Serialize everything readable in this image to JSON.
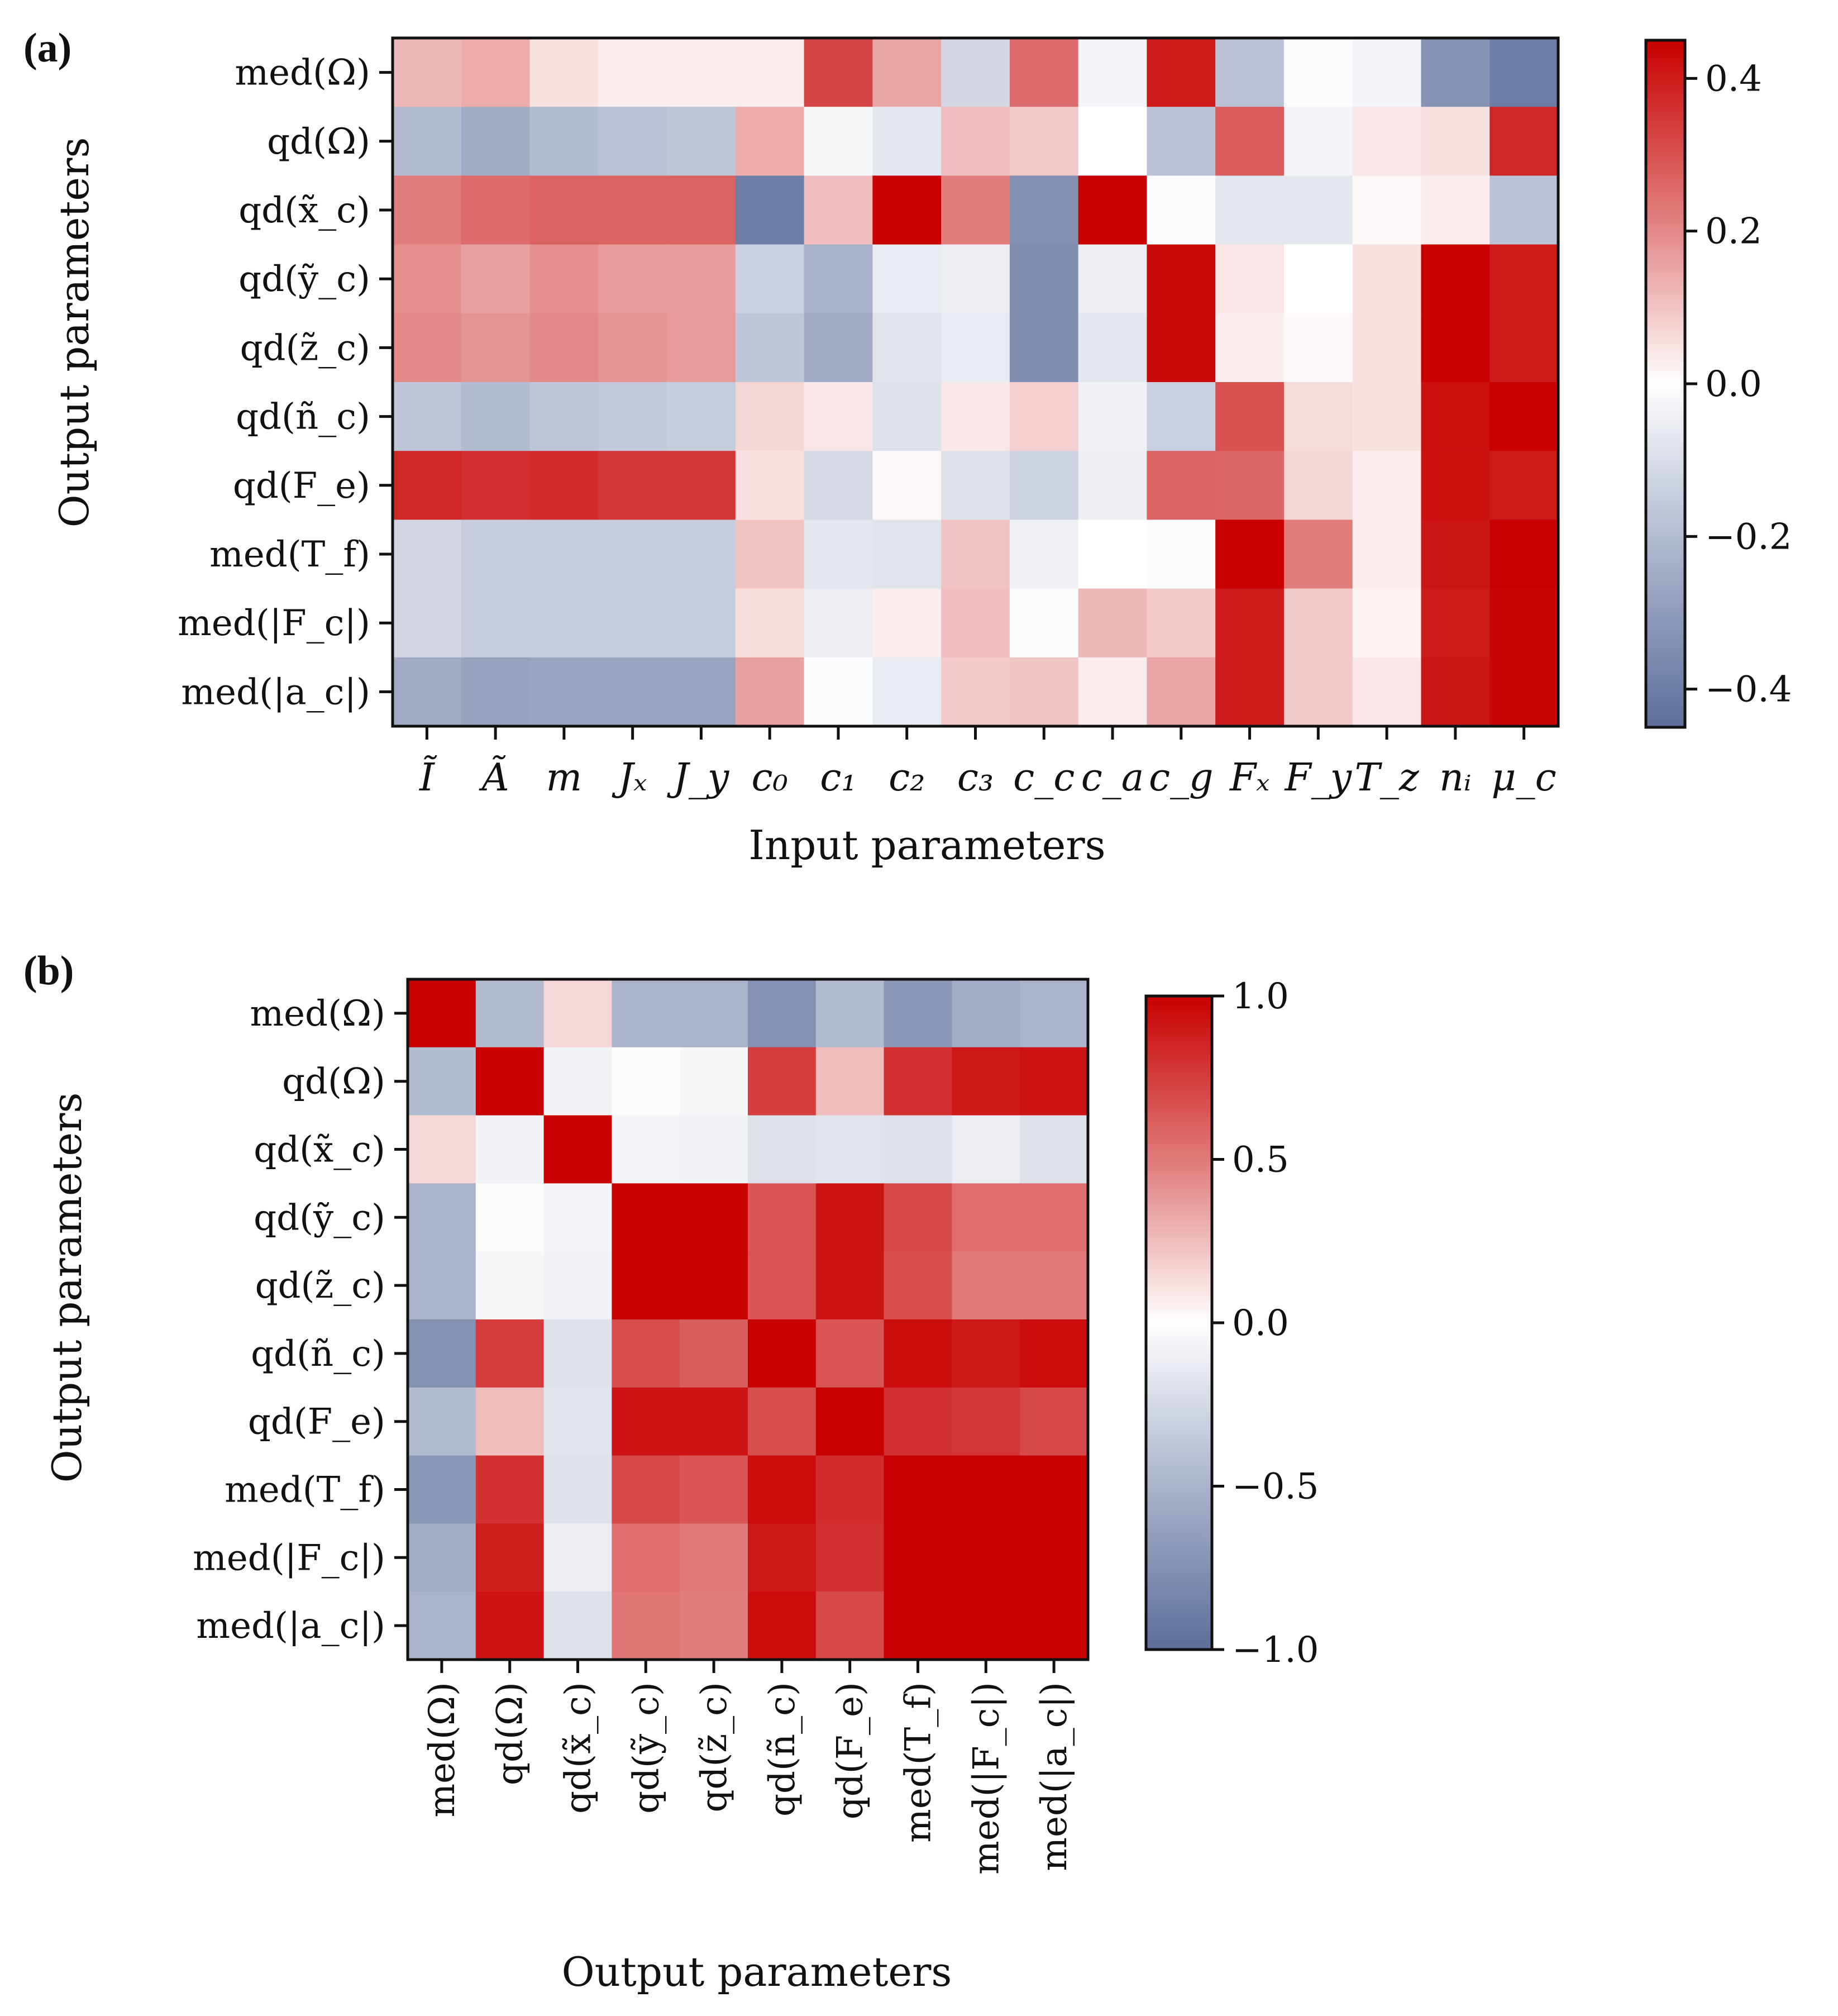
{
  "chart_data": [
    {
      "type": "heatmap",
      "panel_label": "(a)",
      "xlabel": "Input parameters",
      "ylabel": "Output parameters",
      "x_categories": [
        "Ĩ",
        "Ã",
        "m",
        "Jₓ",
        "J_y",
        "c₀",
        "c₁",
        "c₂",
        "c₃",
        "c_c",
        "c_a",
        "c_g",
        "Fₓ",
        "F_y",
        "T_z",
        "nᵢ",
        "μ_c"
      ],
      "y_categories": [
        "med(Ω)",
        "qd(Ω)",
        "qd(x̃_c)",
        "qd(ỹ_c)",
        "qd(z̃_c)",
        "qd(ñ_c)",
        "qd(F_e)",
        "med(T_f)",
        "med(|F_c|)",
        "med(|a_c|)"
      ],
      "values": [
        [
          0.12,
          0.14,
          0.05,
          0.03,
          0.03,
          0.03,
          0.32,
          0.15,
          -0.12,
          0.25,
          -0.03,
          0.4,
          -0.18,
          -0.01,
          -0.03,
          -0.33,
          -0.4
        ],
        [
          -0.2,
          -0.25,
          -0.2,
          -0.18,
          -0.17,
          0.14,
          -0.02,
          -0.07,
          0.11,
          0.09,
          0.0,
          -0.18,
          0.28,
          -0.03,
          0.04,
          0.05,
          0.38
        ],
        [
          0.22,
          0.25,
          0.27,
          0.27,
          0.27,
          -0.4,
          0.11,
          0.45,
          0.22,
          -0.34,
          0.45,
          -0.01,
          -0.07,
          -0.07,
          0.01,
          0.03,
          -0.18
        ],
        [
          0.19,
          0.16,
          0.19,
          0.17,
          0.17,
          -0.14,
          -0.23,
          -0.06,
          -0.05,
          -0.35,
          -0.05,
          0.43,
          0.04,
          0.0,
          0.05,
          0.45,
          0.4
        ],
        [
          0.2,
          0.18,
          0.2,
          0.18,
          0.17,
          -0.17,
          -0.25,
          -0.08,
          -0.06,
          -0.35,
          -0.07,
          0.43,
          0.03,
          0.01,
          0.05,
          0.45,
          0.4
        ],
        [
          -0.17,
          -0.2,
          -0.17,
          -0.16,
          -0.15,
          0.07,
          0.04,
          -0.09,
          0.04,
          0.08,
          -0.04,
          -0.14,
          0.3,
          0.06,
          0.05,
          0.42,
          0.46
        ],
        [
          0.38,
          0.36,
          0.37,
          0.35,
          0.35,
          0.05,
          -0.11,
          0.01,
          -0.09,
          -0.13,
          -0.05,
          0.27,
          0.26,
          0.07,
          0.03,
          0.42,
          0.4
        ],
        [
          -0.12,
          -0.15,
          -0.15,
          -0.15,
          -0.15,
          0.1,
          -0.07,
          -0.08,
          0.1,
          -0.04,
          0.0,
          -0.01,
          0.46,
          0.22,
          0.03,
          0.41,
          0.46
        ],
        [
          -0.12,
          -0.15,
          -0.15,
          -0.15,
          -0.15,
          0.06,
          -0.05,
          0.03,
          0.11,
          -0.01,
          0.12,
          0.09,
          0.4,
          0.09,
          0.02,
          0.4,
          0.44
        ],
        [
          -0.25,
          -0.28,
          -0.27,
          -0.27,
          -0.27,
          0.16,
          -0.01,
          -0.06,
          0.09,
          0.1,
          0.03,
          0.15,
          0.4,
          0.09,
          0.04,
          0.41,
          0.44
        ]
      ],
      "vmin": -0.45,
      "vmax": 0.45,
      "colorbar_ticks": [
        0.4,
        0.2,
        0.0,
        -0.2,
        -0.4
      ],
      "colorbar_tick_labels": [
        "0.4",
        "0.2",
        "0.0",
        "−0.2",
        "−0.4"
      ]
    },
    {
      "type": "heatmap",
      "panel_label": "(b)",
      "xlabel": "Output parameters",
      "ylabel": "Output parameters",
      "x_categories": [
        "med(Ω)",
        "qd(Ω)",
        "qd(x̃_c)",
        "qd(ỹ_c)",
        "qd(z̃_c)",
        "qd(ñ_c)",
        "qd(F_e)",
        "med(T_f)",
        "med(|F_c|)",
        "med(|a_c|)"
      ],
      "y_categories": [
        "med(Ω)",
        "qd(Ω)",
        "qd(x̃_c)",
        "qd(ỹ_c)",
        "qd(z̃_c)",
        "qd(ñ_c)",
        "qd(F_e)",
        "med(T_f)",
        "med(|F_c|)",
        "med(|a_c|)"
      ],
      "values": [
        [
          1.0,
          -0.45,
          0.15,
          -0.5,
          -0.5,
          -0.75,
          -0.45,
          -0.7,
          -0.55,
          -0.5
        ],
        [
          -0.45,
          1.0,
          -0.08,
          -0.02,
          -0.05,
          0.75,
          0.25,
          0.8,
          0.9,
          0.92
        ],
        [
          0.15,
          -0.08,
          1.0,
          -0.07,
          -0.08,
          -0.2,
          -0.18,
          -0.2,
          -0.12,
          -0.2
        ],
        [
          -0.5,
          -0.02,
          -0.07,
          1.0,
          1.0,
          0.65,
          0.92,
          0.7,
          0.55,
          0.55
        ],
        [
          -0.5,
          -0.05,
          -0.08,
          1.0,
          1.0,
          0.65,
          0.92,
          0.68,
          0.5,
          0.5
        ],
        [
          -0.75,
          0.75,
          -0.2,
          0.68,
          0.62,
          1.0,
          0.65,
          0.95,
          0.9,
          0.95
        ],
        [
          -0.45,
          0.25,
          -0.18,
          0.92,
          0.92,
          0.68,
          1.0,
          0.8,
          0.78,
          0.7
        ],
        [
          -0.7,
          0.8,
          -0.2,
          0.7,
          0.65,
          0.95,
          0.82,
          1.0,
          1.0,
          1.0
        ],
        [
          -0.55,
          0.88,
          -0.12,
          0.55,
          0.5,
          0.9,
          0.8,
          1.0,
          1.0,
          1.0
        ],
        [
          -0.5,
          0.92,
          -0.2,
          0.52,
          0.48,
          0.95,
          0.7,
          1.0,
          1.0,
          1.0
        ]
      ],
      "vmin": -1.0,
      "vmax": 1.0,
      "colorbar_ticks": [
        1.0,
        0.5,
        0.0,
        -0.5,
        -1.0
      ],
      "colorbar_tick_labels": [
        "1.0",
        "0.5",
        "0.0",
        "−0.5",
        "−1.0"
      ]
    }
  ]
}
